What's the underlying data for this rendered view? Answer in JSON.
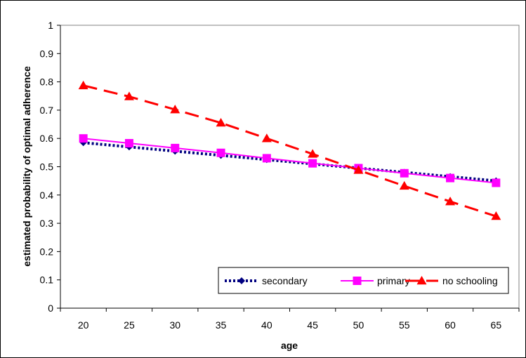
{
  "chart_data": {
    "type": "line",
    "title": "",
    "xlabel": "age",
    "ylabel": "estimated probability of optimal adherence",
    "x": [
      20,
      25,
      30,
      35,
      40,
      45,
      50,
      55,
      60,
      65
    ],
    "x_tick_labels": [
      "20",
      "25",
      "30",
      "35",
      "40",
      "45",
      "50",
      "55",
      "60",
      "65"
    ],
    "ylim": [
      0,
      1
    ],
    "y_ticks": [
      0,
      0.1,
      0.2,
      0.3,
      0.4,
      0.5,
      0.6,
      0.7,
      0.8,
      0.9,
      1
    ],
    "y_tick_labels": [
      "0",
      "0.1",
      "0.2",
      "0.3",
      "0.4",
      "0.5",
      "0.6",
      "0.7",
      "0.8",
      "0.9",
      "1"
    ],
    "grid": false,
    "legend_position": "bottom-right",
    "series": [
      {
        "name": "secondary",
        "values": [
          0.585,
          0.57,
          0.555,
          0.54,
          0.525,
          0.51,
          0.495,
          0.48,
          0.465,
          0.45
        ],
        "color": "#000080",
        "marker": "diamond",
        "line_style": "dotted"
      },
      {
        "name": "primary",
        "values": [
          0.6,
          0.583,
          0.566,
          0.549,
          0.53,
          0.512,
          0.495,
          0.477,
          0.46,
          0.443
        ],
        "color": "#ff00ff",
        "marker": "square",
        "line_style": "solid"
      },
      {
        "name": "no schooling",
        "values": [
          0.787,
          0.748,
          0.702,
          0.655,
          0.6,
          0.545,
          0.488,
          0.432,
          0.377,
          0.325
        ],
        "color": "#ff0000",
        "marker": "triangle",
        "line_style": "dashed"
      }
    ]
  }
}
